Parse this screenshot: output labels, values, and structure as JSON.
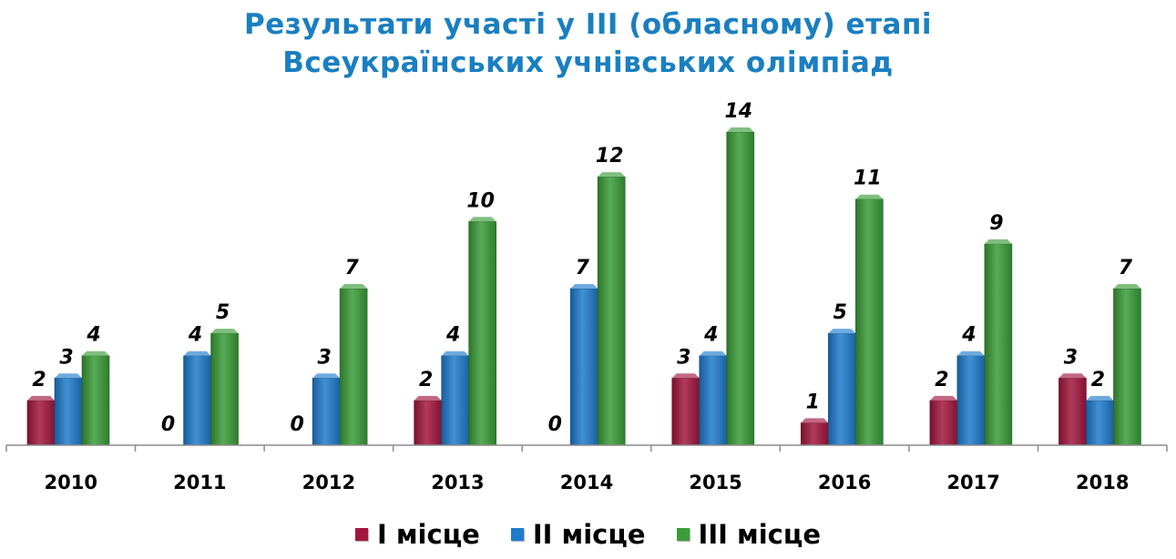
{
  "header": {
    "title_line1": "Результати участі у III (обласному) етапі",
    "title_line2": "Всеукраїнських учнівських олімпіад"
  },
  "legend": [
    {
      "label": "I місце",
      "color": "#a3173f"
    },
    {
      "label": "II місце",
      "color": "#1f7ccc"
    },
    {
      "label": "III місце",
      "color": "#3a9d38"
    }
  ],
  "chart_data": {
    "type": "bar",
    "title": "Результати участі у III (обласному) етапі Всеукраїнських учнівських олімпіад",
    "categories": [
      "2010",
      "2011",
      "2012",
      "2013",
      "2014",
      "2015",
      "2016",
      "2017",
      "2018"
    ],
    "series": [
      {
        "name": "I місце",
        "color": "#a3173f",
        "values": [
          2,
          0,
          0,
          2,
          0,
          3,
          1,
          2,
          3
        ]
      },
      {
        "name": "II місце",
        "color": "#1f7ccc",
        "values": [
          3,
          4,
          3,
          4,
          7,
          4,
          5,
          4,
          2
        ]
      },
      {
        "name": "III місце",
        "color": "#3a9d38",
        "values": [
          4,
          5,
          7,
          10,
          12,
          14,
          11,
          9,
          7
        ]
      }
    ],
    "ylim": [
      0,
      14
    ],
    "grid": false,
    "legend_position": "bottom",
    "data_labels": true
  }
}
